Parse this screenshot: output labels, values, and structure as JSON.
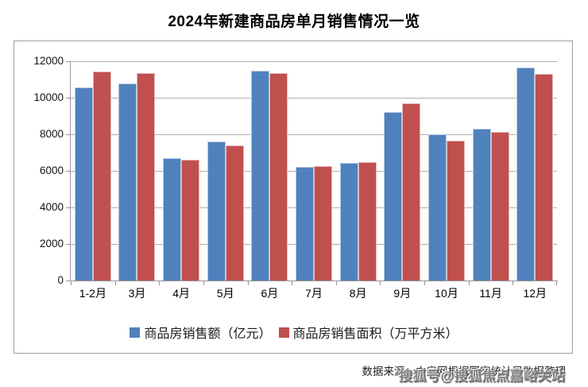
{
  "title": "2024年新建商品房单月销售情况一览",
  "source_note": "数据来源：中房网根据国家统计局数据整理",
  "watermark": "搜狐号@搜狐焦点嘉峪关站",
  "chart_data": {
    "type": "bar",
    "title": "2024年新建商品房单月销售情况一览",
    "categories": [
      "1-2月",
      "3月",
      "4月",
      "5月",
      "6月",
      "7月",
      "8月",
      "9月",
      "10月",
      "11月",
      "12月"
    ],
    "series": [
      {
        "name": "商品房销售额（亿元）",
        "color": "#4F81BD",
        "border_color": "#b8cce4",
        "values": [
          10550,
          10800,
          6700,
          7600,
          11500,
          6200,
          6450,
          9200,
          8000,
          8300,
          11650
        ]
      },
      {
        "name": "商品房销售面积（万平方米）",
        "color": "#C0504D",
        "border_color": "#e6b9b8",
        "values": [
          11450,
          11350,
          6600,
          7400,
          11350,
          6250,
          6500,
          9700,
          7650,
          8150,
          11300
        ]
      }
    ],
    "ylim": [
      0,
      12000
    ],
    "ytick_interval": 2000,
    "yticks": [
      0,
      2000,
      4000,
      6000,
      8000,
      10000,
      12000
    ],
    "xlabel": "",
    "ylabel": "",
    "grid": true,
    "legend_position": "bottom",
    "axis_color": "#969696",
    "gridline_color": "#b0b0b0"
  }
}
